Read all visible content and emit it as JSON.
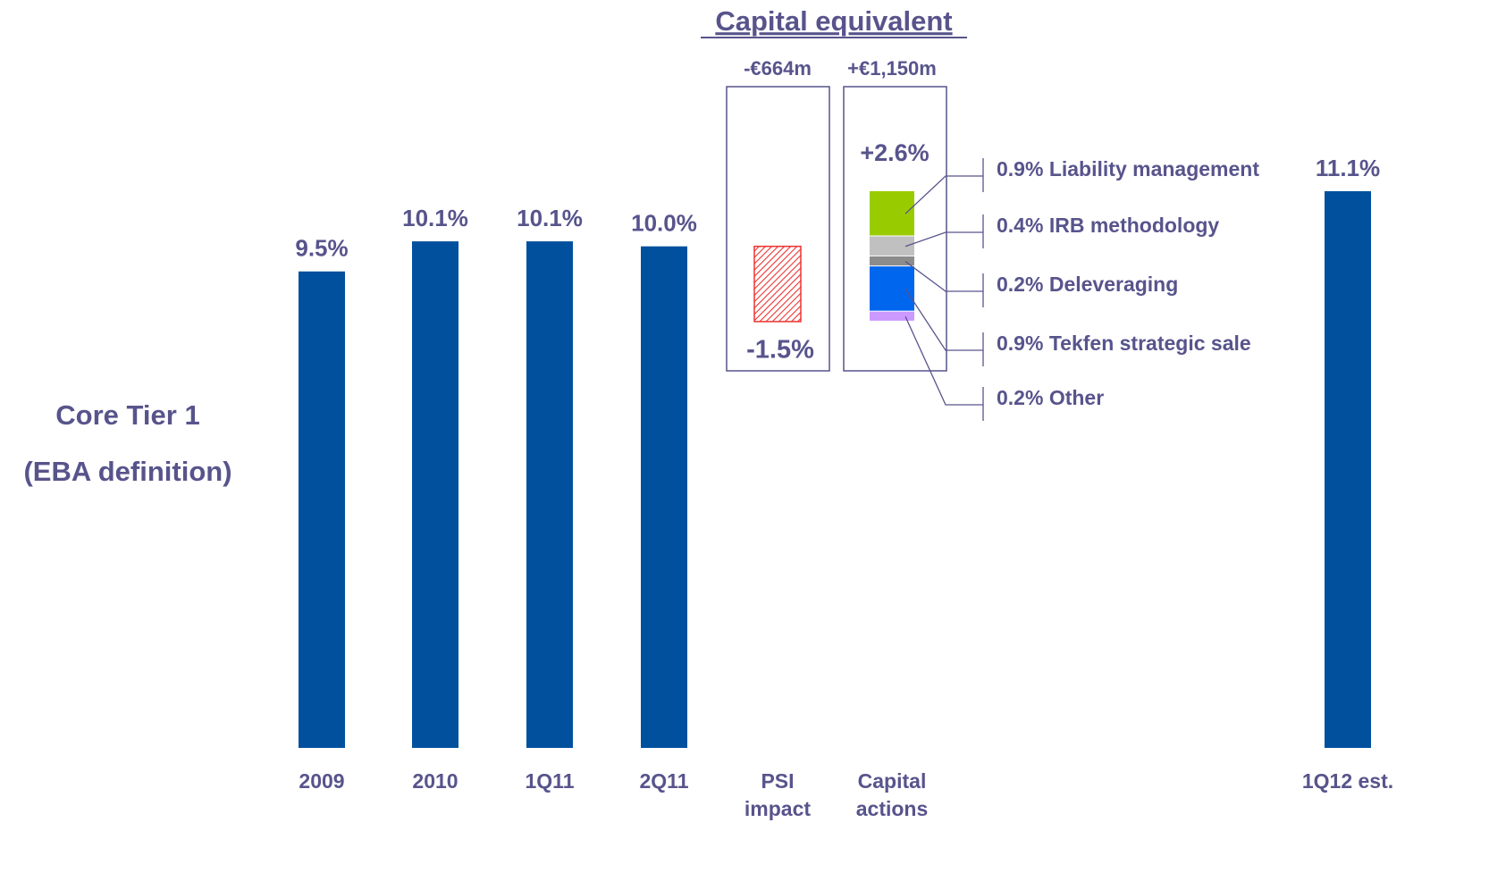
{
  "chart_data": {
    "type": "waterfall",
    "title": "Capital equivalent",
    "ylabel": [
      "Core Tier 1",
      "(EBA definition)"
    ],
    "categories": [
      "2009",
      "2010",
      "1Q11",
      "2Q11",
      "PSI impact",
      "Capital actions",
      "1Q12 est."
    ],
    "values": [
      9.5,
      10.1,
      10.1,
      10.0,
      -1.5,
      2.6,
      11.1
    ],
    "value_labels": [
      "9.5%",
      "10.1%",
      "10.1%",
      "10.0%",
      "-1.5%",
      "+2.6%",
      "11.1%"
    ],
    "measure": [
      "total",
      "total",
      "total",
      "total",
      "relative",
      "relative",
      "total"
    ],
    "capital_equivalent": [
      null,
      null,
      null,
      null,
      "-€664m",
      "+€1,150m",
      null
    ],
    "color": "#00509e",
    "negative_color": "#ee3333",
    "components": [
      {
        "name": "Liability management",
        "value": 0.9,
        "label": "0.9%",
        "color": "#99cc00"
      },
      {
        "name": "IRB methodology",
        "value": 0.4,
        "label": "0.4%",
        "color": "#c0c0c0"
      },
      {
        "name": "Deleveraging",
        "value": 0.2,
        "label": "0.2%",
        "color": "#8c8c8c"
      },
      {
        "name": "Tekfen strategic sale",
        "value": 0.9,
        "label": "0.9%",
        "color": "#0066ee"
      },
      {
        "name": "Other",
        "value": 0.2,
        "label": "0.2%",
        "color": "#cc99ff"
      }
    ],
    "ylim": [
      0,
      12
    ]
  }
}
